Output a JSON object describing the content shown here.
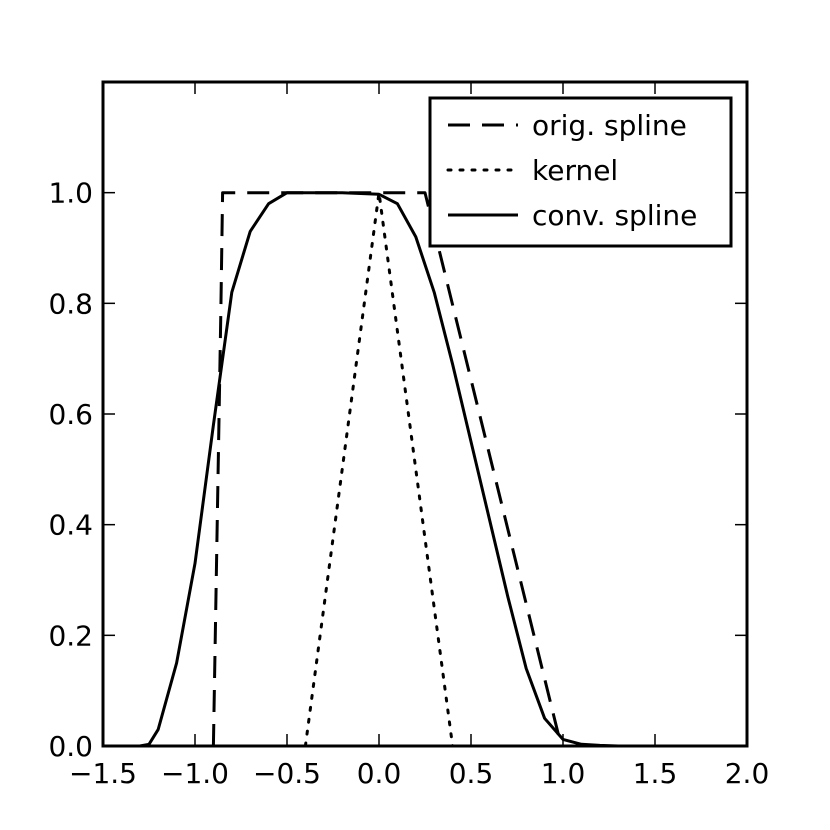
{
  "chart_data": {
    "type": "line",
    "title": "",
    "xlabel": "",
    "ylabel": "",
    "xlim": [
      -1.5,
      2.0
    ],
    "ylim": [
      0.0,
      1.2
    ],
    "xticks": [
      -1.5,
      -1.0,
      -0.5,
      0.0,
      0.5,
      1.0,
      1.5,
      2.0
    ],
    "xtick_labels": [
      "−1.5",
      "−1.0",
      "−0.5",
      "0.0",
      "0.5",
      "1.0",
      "1.5",
      "2.0"
    ],
    "yticks": [
      0.0,
      0.2,
      0.4,
      0.6,
      0.8,
      1.0
    ],
    "ytick_labels": [
      "0.0",
      "0.2",
      "0.4",
      "0.6",
      "0.8",
      "1.0"
    ],
    "grid": false,
    "legend_position": "top-right",
    "series": [
      {
        "name": "orig. spline",
        "style": "dashed",
        "color": "#000000",
        "x": [
          -0.9,
          -0.86,
          -0.85,
          0.25,
          0.99
        ],
        "y": [
          0.0,
          0.78,
          1.0,
          1.0,
          0.0
        ]
      },
      {
        "name": "kernel",
        "style": "dotted",
        "color": "#000000",
        "x": [
          -0.4,
          0.0,
          0.4
        ],
        "y": [
          0.0,
          1.0,
          0.0
        ]
      },
      {
        "name": "conv. spline",
        "style": "solid",
        "color": "#000000",
        "x": [
          -1.5,
          -1.3,
          -1.25,
          -1.2,
          -1.1,
          -1.0,
          -0.9,
          -0.8,
          -0.7,
          -0.6,
          -0.5,
          -0.4,
          -0.2,
          0.0,
          0.1,
          0.2,
          0.3,
          0.4,
          0.5,
          0.6,
          0.7,
          0.8,
          0.9,
          1.0,
          1.1,
          1.2,
          1.3,
          1.4
        ],
        "y": [
          0.0,
          0.0,
          0.003,
          0.03,
          0.15,
          0.33,
          0.58,
          0.82,
          0.93,
          0.98,
          1.0,
          1.0,
          1.0,
          0.997,
          0.98,
          0.92,
          0.82,
          0.69,
          0.55,
          0.41,
          0.27,
          0.14,
          0.05,
          0.012,
          0.003,
          0.001,
          0.0,
          0.0
        ]
      }
    ]
  }
}
